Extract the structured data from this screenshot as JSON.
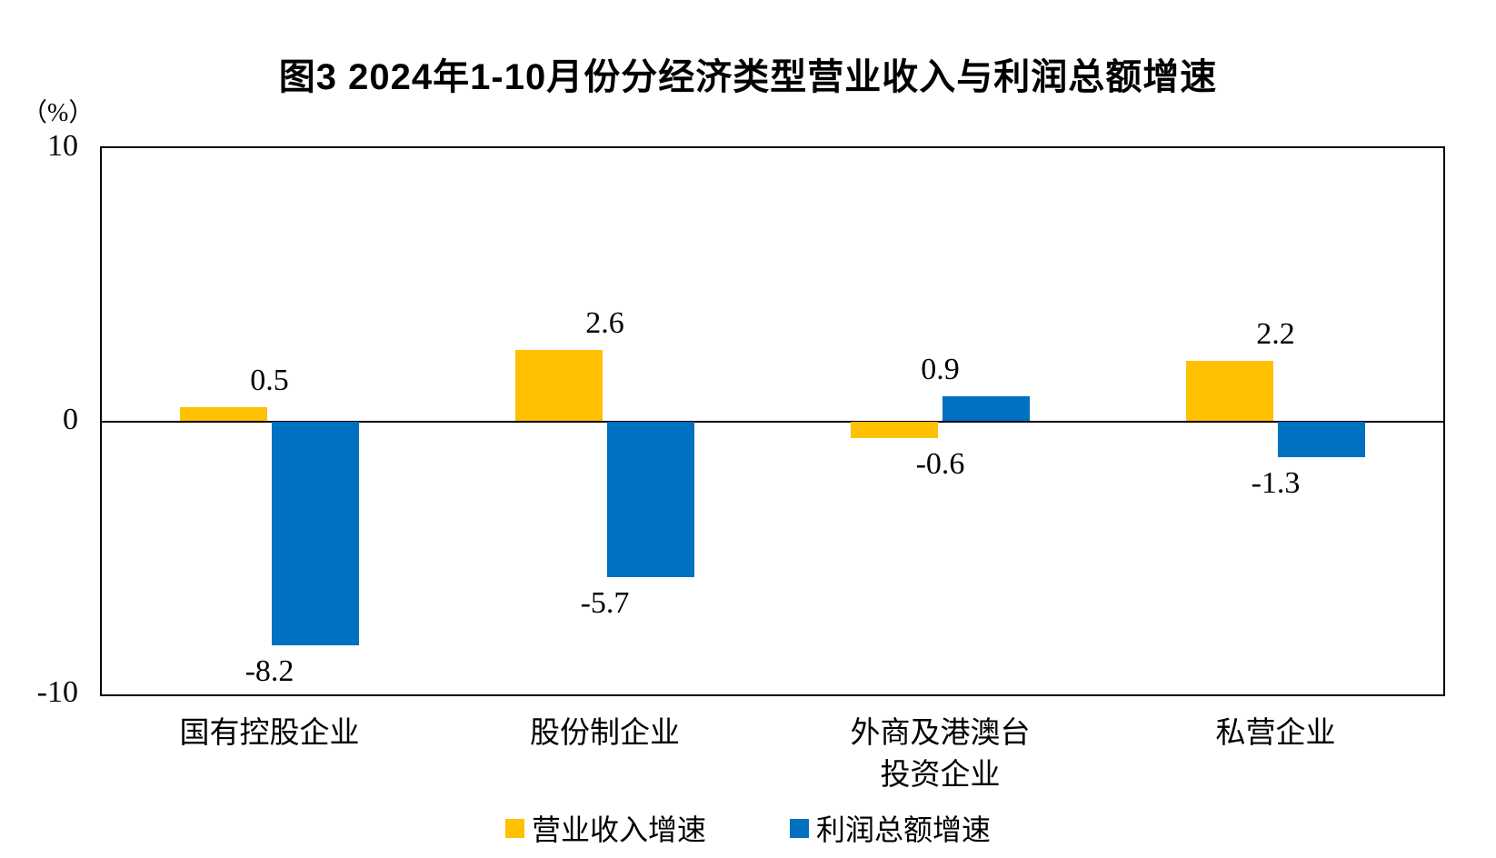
{
  "title": "图3 2024年1-10月份分经济类型营业收入与利润总额增速",
  "y_axis": {
    "unit_label": "（%）"
  },
  "chart_data": {
    "type": "bar",
    "categories": [
      "国有控股企业",
      "股份制企业",
      "外商及港澳台\n投资企业",
      "私营企业"
    ],
    "series": [
      {
        "key": "revenue-growth",
        "name": "营业收入增速",
        "color": "#FFC000",
        "values": [
          0.5,
          2.6,
          -0.6,
          2.2
        ]
      },
      {
        "key": "profit-growth",
        "name": "利润总额增速",
        "color": "#0070C0",
        "values": [
          -8.2,
          -5.7,
          0.9,
          -1.3
        ]
      }
    ],
    "ylim": [
      -10,
      10
    ],
    "yticks": [
      10,
      0,
      -10
    ],
    "grid": false,
    "axis_color": "#000000",
    "legend_position": "bottom"
  }
}
